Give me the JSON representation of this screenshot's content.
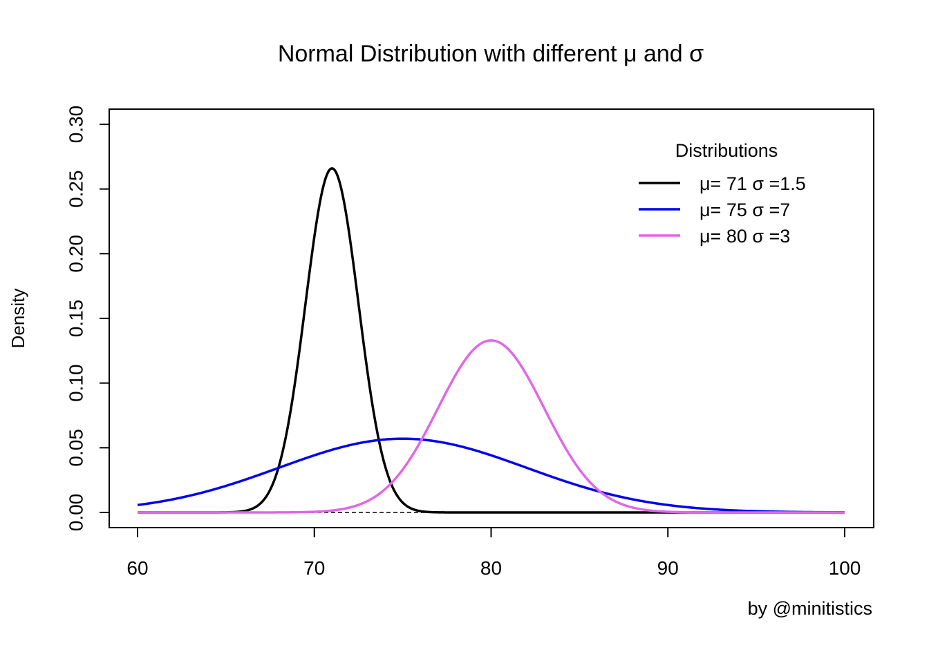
{
  "chart_data": {
    "type": "line",
    "title": "Normal Distribution with different μ and σ",
    "xlabel": "",
    "ylabel": "Density",
    "xlim": [
      60,
      100
    ],
    "ylim": [
      0,
      0.3
    ],
    "x_ticks": [
      60,
      70,
      80,
      90,
      100
    ],
    "x_tick_labels": [
      "60",
      "70",
      "80",
      "90",
      "100"
    ],
    "y_ticks": [
      0.0,
      0.05,
      0.1,
      0.15,
      0.2,
      0.25,
      0.3
    ],
    "y_tick_labels": [
      "0.00",
      "0.05",
      "0.10",
      "0.15",
      "0.20",
      "0.25",
      "0.30"
    ],
    "grid": false,
    "legend": {
      "title": "Distributions",
      "placement": "top-right",
      "box": false
    },
    "series": [
      {
        "name": "μ= 71 σ =1.5",
        "distribution": "normal",
        "mean": 71,
        "sd": 1.5,
        "color": "#000000"
      },
      {
        "name": "μ= 75 σ =7",
        "distribution": "normal",
        "mean": 75,
        "sd": 7,
        "color": "#0000ee"
      },
      {
        "name": "μ= 80 σ =3",
        "distribution": "normal",
        "mean": 80,
        "sd": 3,
        "color": "#e066e8"
      }
    ],
    "credit": "by @minitistics"
  }
}
